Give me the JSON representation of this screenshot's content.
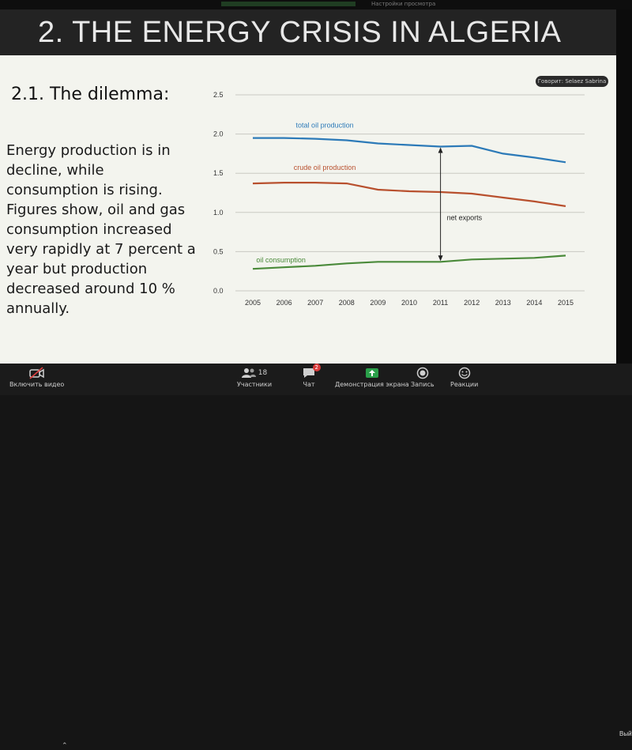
{
  "browser": {
    "settings_text": "Настройки просмотра"
  },
  "slide": {
    "title": "2. THE ENERGY CRISIS IN ALGERIA",
    "subheading": "2.1. The dilemma:",
    "body_lines": [
      "Energy production is in",
      "decline, while",
      "consumption is rising.",
      "Figures show, oil and gas",
      "consumption increased",
      "very rapidly at 7 percent a",
      "year but production",
      "decreased around 10 %",
      "annually."
    ],
    "overlay_text": "Говорит: Selaez Sabrina"
  },
  "chart_data": {
    "type": "line",
    "x": [
      2005,
      2006,
      2007,
      2008,
      2009,
      2010,
      2011,
      2012,
      2013,
      2014,
      2015
    ],
    "ylim": [
      0,
      2.5
    ],
    "yticks": [
      "0.0",
      "0.5",
      "1.0",
      "1.5",
      "2.0",
      "2.5"
    ],
    "grid": true,
    "series": [
      {
        "name": "total oil production",
        "color": "#2c7ab8",
        "values": [
          1.95,
          1.95,
          1.94,
          1.92,
          1.88,
          1.86,
          1.84,
          1.85,
          1.75,
          1.7,
          1.64
        ]
      },
      {
        "name": "crude oil production",
        "color": "#b8502e",
        "values": [
          1.37,
          1.38,
          1.38,
          1.37,
          1.29,
          1.27,
          1.26,
          1.24,
          1.19,
          1.14,
          1.08
        ]
      },
      {
        "name": "oil consumption",
        "color": "#4a8a3a",
        "values": [
          0.28,
          0.3,
          0.32,
          0.35,
          0.37,
          0.37,
          0.37,
          0.4,
          0.41,
          0.42,
          0.45
        ]
      }
    ],
    "annotation": {
      "label": "net exports",
      "x": 2011
    }
  },
  "toolbar": {
    "video_label": "Включить видео",
    "participants_label": "Участники",
    "participants_count": "18",
    "chat_label": "Чат",
    "chat_badge": "2",
    "share_label": "Демонстрация экрана",
    "record_label": "Запись",
    "reactions_label": "Реакции",
    "exit_label": "Выйти"
  },
  "colors": {
    "share_green": "#2aa04a",
    "badge_red": "#d83a3a"
  }
}
